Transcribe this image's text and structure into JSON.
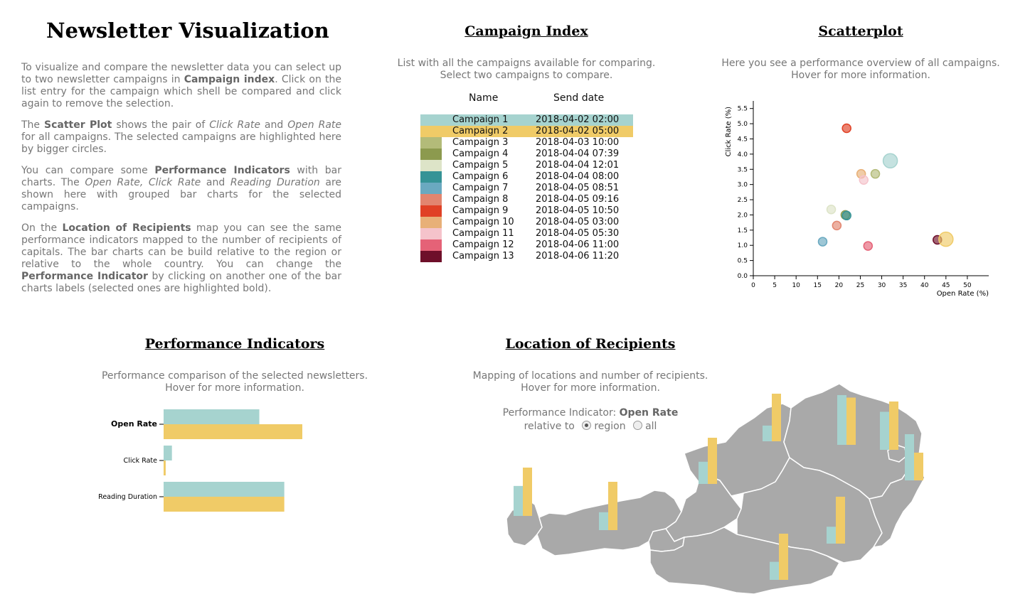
{
  "app_title": "Newsletter Visualization",
  "intro": {
    "p1_a": "To visualize and compare the newsletter data you can select up to two newsletter campaigns in ",
    "p1_b": "Campaign index",
    "p1_c": ". Click on the list entry for the campaign which shell be compared and click again to remove the selection.",
    "p2_a": "The ",
    "p2_b": "Scatter Plot",
    "p2_c": " shows the pair of ",
    "p2_d": "Click Rate",
    "p2_e": " and ",
    "p2_f": "Open Rate",
    "p2_g": " for all campaigns. The selected campaigns are highlighted here by bigger circles.",
    "p3_a": "You can compare some ",
    "p3_b": "Performance Indicators",
    "p3_c": " with bar charts. The ",
    "p3_d": "Open Rate, Click Rate",
    "p3_e": " and ",
    "p3_f": "Reading Duration",
    "p3_g": " are shown here with grouped bar charts for the selected campaigns.",
    "p4_a": "On the ",
    "p4_b": "Location of Recipients",
    "p4_c": " map you can see the same performance indicators mapped to the number of recipients of capitals. The bar charts can be build relative to the region or relative to the whole country. You can change the ",
    "p4_d": "Performance Indicator",
    "p4_e": " by clicking on another one of the bar charts labels (selected ones are highlighted bold)."
  },
  "campaign_index": {
    "title": "Campaign Index",
    "desc1": "List with all the campaigns available for comparing.",
    "desc2": "Select two campaigns to compare.",
    "col_name": "Name",
    "col_date": "Send date",
    "rows": [
      {
        "name": "Campaign 1",
        "date": "2018-04-02 02:00",
        "color": "#a6d3cf",
        "selected": true
      },
      {
        "name": "Campaign 2",
        "date": "2018-04-02 05:00",
        "color": "#f0cb67",
        "selected": true
      },
      {
        "name": "Campaign 3",
        "date": "2018-04-03 10:00",
        "color": "#b3bb79",
        "selected": false
      },
      {
        "name": "Campaign 4",
        "date": "2018-04-04 07:39",
        "color": "#8c9a4e",
        "selected": false
      },
      {
        "name": "Campaign 5",
        "date": "2018-04-04 12:01",
        "color": "#dde4c8",
        "selected": false
      },
      {
        "name": "Campaign 6",
        "date": "2018-04-04 08:00",
        "color": "#359396",
        "selected": false
      },
      {
        "name": "Campaign 7",
        "date": "2018-04-05 08:51",
        "color": "#6aa9c0",
        "selected": false
      },
      {
        "name": "Campaign 8",
        "date": "2018-04-05 09:16",
        "color": "#e2856f",
        "selected": false
      },
      {
        "name": "Campaign 9",
        "date": "2018-04-05 10:50",
        "color": "#e04125",
        "selected": false
      },
      {
        "name": "Campaign 10",
        "date": "2018-04-05 03:00",
        "color": "#e8b078",
        "selected": false
      },
      {
        "name": "Campaign 11",
        "date": "2018-04-05 05:30",
        "color": "#f5c3cb",
        "selected": false
      },
      {
        "name": "Campaign 12",
        "date": "2018-04-06 11:00",
        "color": "#e56277",
        "selected": false
      },
      {
        "name": "Campaign 13",
        "date": "2018-04-06 11:20",
        "color": "#6e0f2a",
        "selected": false
      }
    ]
  },
  "scatter": {
    "title": "Scatterplot",
    "desc1": "Here you see a performance overview of all campaigns.",
    "desc2": "Hover for more information."
  },
  "performance": {
    "title": "Performance Indicators",
    "desc1": "Performance comparison of the selected newsletters.",
    "desc2": "Hover for more information."
  },
  "location": {
    "title": "Location of Recipients",
    "desc1": "Mapping of locations and number of recipients.",
    "desc2": "Hover for more information.",
    "indicator_label": "Performance Indicator:",
    "indicator_value": "Open Rate",
    "relative_label": "relative to",
    "option_region": "region",
    "option_all": "all",
    "selected_option": "region",
    "map_color": "#a9a9a9"
  },
  "chart_data": [
    {
      "type": "scatter",
      "xlabel": "Open Rate (%)",
      "ylabel": "Click Rate (%)",
      "xlim": [
        0,
        55
      ],
      "ylim": [
        0,
        5.75
      ],
      "xticks": [
        0,
        5,
        10,
        15,
        20,
        25,
        30,
        35,
        40,
        45,
        50
      ],
      "yticks": [
        0.0,
        0.5,
        1.0,
        1.5,
        2.0,
        2.5,
        3.0,
        3.5,
        4.0,
        4.5,
        5.0,
        5.5
      ],
      "points": [
        {
          "campaign": "Campaign 1",
          "x": 32.0,
          "y": 3.78,
          "color": "#a6d3cf",
          "selected": true
        },
        {
          "campaign": "Campaign 2",
          "x": 45.0,
          "y": 1.2,
          "color": "#f0cb67",
          "selected": true
        },
        {
          "campaign": "Campaign 3",
          "x": 28.5,
          "y": 3.35,
          "color": "#b3bb79",
          "selected": false
        },
        {
          "campaign": "Campaign 4",
          "x": 21.5,
          "y": 2.0,
          "color": "#8c9a4e",
          "selected": false
        },
        {
          "campaign": "Campaign 5",
          "x": 18.2,
          "y": 2.18,
          "color": "#dde4c8",
          "selected": false
        },
        {
          "campaign": "Campaign 6",
          "x": 21.8,
          "y": 1.98,
          "color": "#359396",
          "selected": false
        },
        {
          "campaign": "Campaign 7",
          "x": 16.2,
          "y": 1.12,
          "color": "#6aa9c0",
          "selected": false
        },
        {
          "campaign": "Campaign 8",
          "x": 19.5,
          "y": 1.65,
          "color": "#e2856f",
          "selected": false
        },
        {
          "campaign": "Campaign 9",
          "x": 21.8,
          "y": 4.85,
          "color": "#e04125",
          "selected": false
        },
        {
          "campaign": "Campaign 10",
          "x": 25.2,
          "y": 3.35,
          "color": "#e8b078",
          "selected": false
        },
        {
          "campaign": "Campaign 11",
          "x": 25.8,
          "y": 3.15,
          "color": "#f5c3cb",
          "selected": false
        },
        {
          "campaign": "Campaign 12",
          "x": 26.8,
          "y": 0.98,
          "color": "#e56277",
          "selected": false
        },
        {
          "campaign": "Campaign 13",
          "x": 43.0,
          "y": 1.18,
          "color": "#6e0f2a",
          "selected": false
        }
      ]
    },
    {
      "type": "bar",
      "orientation": "horizontal",
      "categories": [
        "Open Rate",
        "Click Rate",
        "Reading Duration"
      ],
      "active_category": "Open Rate",
      "max": 1.0,
      "series": [
        {
          "name": "Campaign 1",
          "color": "#a6d3cf",
          "values": [
            0.69,
            0.06,
            0.87
          ]
        },
        {
          "name": "Campaign 2",
          "color": "#f0cb67",
          "values": [
            1.0,
            0.015,
            0.87
          ]
        }
      ]
    },
    {
      "type": "bar",
      "variant": "map-grouped-bars",
      "indicator": "Open Rate",
      "relative_to": "region",
      "series_colors": [
        "#a6d3cf",
        "#f0cb67"
      ],
      "groups": [
        {
          "values": [
            0.62,
            1.0
          ]
        },
        {
          "values": [
            0.37,
            1.0
          ]
        },
        {
          "values": [
            0.48,
            1.0
          ]
        },
        {
          "values": [
            0.33,
            1.0
          ]
        },
        {
          "values": [
            0.36,
            1.0
          ]
        },
        {
          "values": [
            1.0,
            0.95
          ]
        },
        {
          "values": [
            0.78,
            1.0
          ]
        },
        {
          "values": [
            1.0,
            0.6
          ]
        },
        {
          "values": [
            0.39,
            1.0
          ]
        },
        {
          "values": [
            0.54,
            1.0
          ]
        }
      ]
    }
  ]
}
